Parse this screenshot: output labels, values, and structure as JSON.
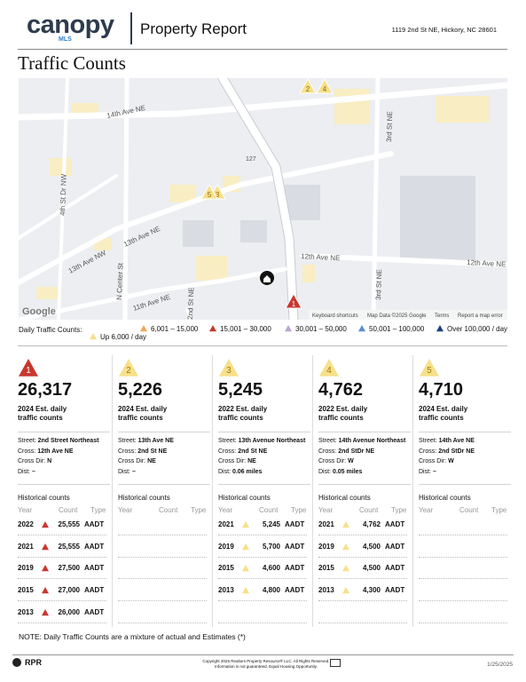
{
  "header": {
    "logo": "canopy",
    "logo_sub": "MLS",
    "title": "Property Report",
    "address": "1119 2nd St NE, Hickory, NC 28601"
  },
  "section_title": "Traffic Counts",
  "map": {
    "streets": [
      "14th Ave NE",
      "13th Ave NE",
      "13th Ave NW",
      "12th Ave NE",
      "12th Ave NE",
      "11th Ave NE",
      "4th St Dr NW",
      "N Center St",
      "2nd St NE",
      "3rd St NE",
      "3rd St NE",
      "127"
    ],
    "google": "Google",
    "footer": [
      "Keyboard shortcuts",
      "Map Data ©2025 Google",
      "Terms",
      "Report a map error"
    ],
    "markers": [
      "1",
      "2",
      "3",
      "4",
      "5"
    ]
  },
  "legend": {
    "title": "Daily Traffic Counts:",
    "items": [
      {
        "label": "Up 6,000 / day",
        "color": "#f7e08a"
      },
      {
        "label": "6,001 – 15,000",
        "color": "#f0a85a"
      },
      {
        "label": "15,001 – 30,000",
        "color": "#c8372d"
      },
      {
        "label": "30,001 – 50,000",
        "color": "#b9a6d6"
      },
      {
        "label": "50,001 – 100,000",
        "color": "#5b8fd1"
      },
      {
        "label": "Over 100,000 / day",
        "color": "#1d3f7a"
      }
    ]
  },
  "cards": [
    {
      "marker": "1",
      "color": "#c8372d",
      "count": "26,317",
      "est": "2024 Est. daily traffic counts",
      "details": [
        [
          "Street:",
          "2nd Street Northeast"
        ],
        [
          "Cross:",
          "12th Ave NE"
        ],
        [
          "Cross Dir:",
          "N"
        ],
        [
          "Dist:",
          "–"
        ]
      ],
      "historical_title": "Historical counts",
      "columns": [
        "Year",
        "Count",
        "Type"
      ],
      "rows": [
        [
          "2022",
          "25,555",
          "AADT"
        ],
        [
          "2021",
          "25,555",
          "AADT"
        ],
        [
          "2019",
          "27,500",
          "AADT"
        ],
        [
          "2015",
          "27,000",
          "AADT"
        ],
        [
          "2013",
          "26,000",
          "AADT"
        ]
      ]
    },
    {
      "marker": "2",
      "color": "#f7e08a",
      "count": "5,226",
      "est": "2024 Est. daily traffic counts",
      "details": [
        [
          "Street:",
          "13th Ave NE"
        ],
        [
          "Cross:",
          "2nd St NE"
        ],
        [
          "Cross Dir:",
          "NE"
        ],
        [
          "Dist:",
          "–"
        ]
      ],
      "historical_title": "Historical counts",
      "columns": [
        "Year",
        "Count",
        "Type"
      ],
      "rows": []
    },
    {
      "marker": "3",
      "color": "#f7e08a",
      "count": "5,245",
      "est": "2022 Est. daily traffic counts",
      "details": [
        [
          "Street:",
          "13th Avenue Northeast"
        ],
        [
          "Cross:",
          "2nd St NE"
        ],
        [
          "Cross Dir:",
          "NE"
        ],
        [
          "Dist:",
          "0.06 miles"
        ]
      ],
      "historical_title": "Historical counts",
      "columns": [
        "Year",
        "Count",
        "Type"
      ],
      "rows": [
        [
          "2021",
          "5,245",
          "AADT"
        ],
        [
          "2019",
          "5,700",
          "AADT"
        ],
        [
          "2015",
          "4,600",
          "AADT"
        ],
        [
          "2013",
          "4,800",
          "AADT"
        ]
      ]
    },
    {
      "marker": "4",
      "color": "#f7e08a",
      "count": "4,762",
      "est": "2022 Est. daily traffic counts",
      "details": [
        [
          "Street:",
          "14th Avenue Northeast"
        ],
        [
          "Cross:",
          "2nd StDr NE"
        ],
        [
          "Cross Dir:",
          "W"
        ],
        [
          "Dist:",
          "0.05 miles"
        ]
      ],
      "historical_title": "Historical counts",
      "columns": [
        "Year",
        "Count",
        "Type"
      ],
      "rows": [
        [
          "2021",
          "4,762",
          "AADT"
        ],
        [
          "2019",
          "4,500",
          "AADT"
        ],
        [
          "2015",
          "4,500",
          "AADT"
        ],
        [
          "2013",
          "4,300",
          "AADT"
        ]
      ]
    },
    {
      "marker": "5",
      "color": "#f7e08a",
      "count": "4,710",
      "est": "2024 Est. daily traffic counts",
      "details": [
        [
          "Street:",
          "14th Ave NE"
        ],
        [
          "Cross:",
          "2nd StDr NE"
        ],
        [
          "Cross Dir:",
          "W"
        ],
        [
          "Dist:",
          "–"
        ]
      ],
      "historical_title": "Historical counts",
      "columns": [
        "Year",
        "Count",
        "Type"
      ],
      "rows": []
    }
  ],
  "note": "NOTE: Daily Traffic Counts are a mixture of actual and Estimates (*)",
  "footer": {
    "brand": "RPR",
    "copyright": [
      "Copyright 2025 Realtors Property Resource® LLC. All Rights Reserved.",
      "Information is not guaranteed. Equal Housing Opportunity."
    ],
    "date": "1/25/2025"
  }
}
